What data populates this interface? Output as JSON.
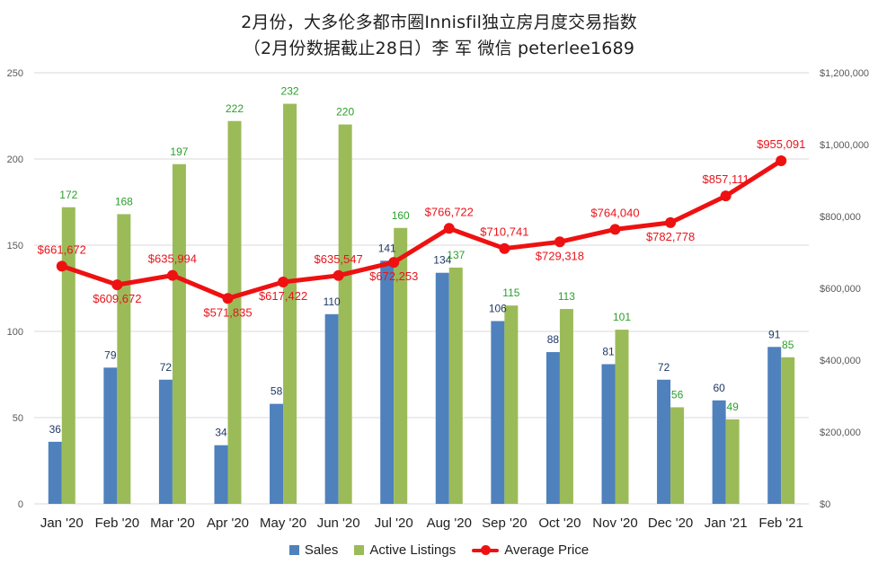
{
  "title_line_1": "2月份，大多伦多都市圈Innisfil独立房月度交易指数",
  "title_line_2": "（2月份数据截止28日）李 军  微信  peterlee1689",
  "colors": {
    "sales": "#4f81bd",
    "active_listings": "#9bbb59",
    "average_price": "#ee1111",
    "sales_label": "#1f3864",
    "listings_label": "#2ca02c",
    "price_label": "#e8141b",
    "axis_text": "#595959",
    "grid": "#d9d9d9"
  },
  "chart_data": {
    "type": "bar",
    "categories": [
      "Jan '20",
      "Feb '20",
      "Mar '20",
      "Apr '20",
      "May '20",
      "Jun '20",
      "Jul '20",
      "Aug '20",
      "Sep '20",
      "Oct '20",
      "Nov '20",
      "Dec '20",
      "Jan '21",
      "Feb '21"
    ],
    "series": [
      {
        "name": "Sales",
        "type": "bar",
        "axis": "left",
        "values": [
          36,
          79,
          72,
          34,
          58,
          110,
          141,
          134,
          106,
          88,
          81,
          72,
          60,
          91
        ]
      },
      {
        "name": "Active Listings",
        "type": "bar",
        "axis": "left",
        "values": [
          172,
          168,
          197,
          222,
          232,
          220,
          160,
          137,
          115,
          113,
          101,
          56,
          49,
          85
        ]
      },
      {
        "name": "Average Price",
        "type": "line",
        "axis": "right",
        "values": [
          661672,
          609672,
          635994,
          571835,
          617422,
          635547,
          672253,
          766722,
          710741,
          729318,
          764040,
          782778,
          857111,
          955091
        ],
        "labels": [
          "$661,672",
          "$609,672",
          "$635,994",
          "$571,835",
          "$617,422",
          "$635,547",
          "$672,253",
          "$766,722",
          "$710,741",
          "$729,318",
          "$764,040",
          "$782,778",
          "$857,111",
          "$955,091"
        ]
      }
    ],
    "y_left": {
      "range": [
        0,
        250
      ],
      "ticks": [
        0,
        50,
        100,
        150,
        200,
        250
      ],
      "tick_labels": [
        "0",
        "50",
        "100",
        "150",
        "200",
        "250"
      ]
    },
    "y_right": {
      "range": [
        0,
        1200000
      ],
      "ticks": [
        0,
        200000,
        400000,
        600000,
        800000,
        1000000,
        1200000
      ],
      "tick_labels": [
        "$0",
        "$200,000",
        "$400,000",
        "$600,000",
        "$800,000",
        "$1,000,000",
        "$1,200,000"
      ]
    },
    "grid": true,
    "legend_position": "bottom"
  }
}
